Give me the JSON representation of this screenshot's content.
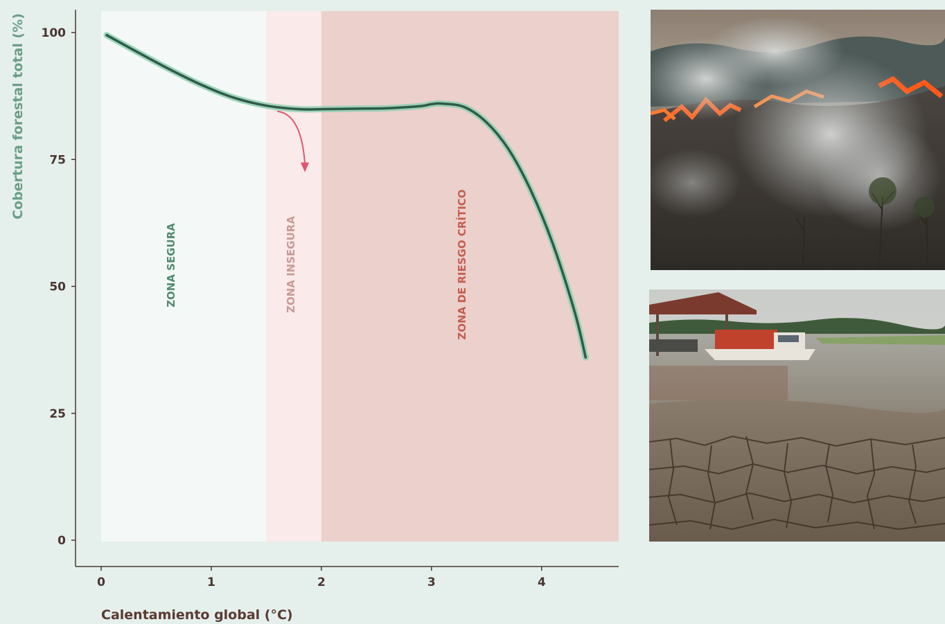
{
  "chart_data": {
    "type": "line",
    "xlabel": "Calentamiento global (°C)",
    "ylabel": "Cobertura forestal total (%)",
    "xlim": [
      0,
      4.7
    ],
    "ylim": [
      0,
      100
    ],
    "x_ticks": [
      "0",
      "1",
      "2",
      "3",
      "4"
    ],
    "y_ticks": [
      "0",
      "25",
      "50",
      "75",
      "100"
    ],
    "zones": [
      {
        "label": "ZONA SEGURA",
        "from": 0,
        "to": 1.5,
        "color": "#f4f9f7",
        "text_color": "#4f8a6f"
      },
      {
        "label": "ZONA INSEGURA",
        "from": 1.5,
        "to": 2,
        "color": "#faeaea",
        "text_color": "#c99a95"
      },
      {
        "label": "ZONA DE RIESGO CRÍTICO",
        "from": 2,
        "to": 4.7,
        "color": "#ecd0cc",
        "text_color": "#c55e4e"
      }
    ],
    "series": [
      {
        "color": "#2f5a48",
        "band_color": "#8fd0b0",
        "x": [
          0.05,
          0.3,
          0.6,
          0.9,
          1.2,
          1.5,
          1.8,
          2.0,
          2.3,
          2.6,
          2.9,
          3.0,
          3.1,
          3.3,
          3.5,
          3.7,
          3.9,
          4.1,
          4.3,
          4.4
        ],
        "y": [
          99.5,
          96.5,
          93.0,
          89.8,
          87.2,
          85.6,
          84.9,
          84.9,
          85.0,
          85.1,
          85.5,
          85.9,
          86.0,
          85.3,
          82.3,
          77.0,
          69.0,
          58.5,
          45.0,
          36.0
        ]
      }
    ],
    "annotation_arrow": {
      "from": [
        1.55,
        85.3
      ],
      "to": [
        1.85,
        72.5
      ],
      "color": "#e0566d"
    }
  },
  "photos": [
    {
      "name": "forest-fire-photo"
    },
    {
      "name": "dry-riverbed-photo"
    }
  ]
}
